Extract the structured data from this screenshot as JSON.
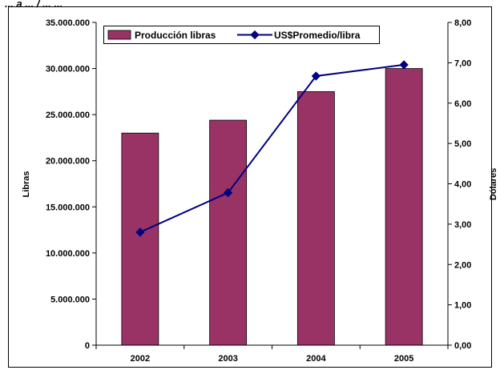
{
  "header_text": "... a ... / ... ...",
  "chart_data": {
    "type": "bar",
    "categories": [
      "2002",
      "2003",
      "2004",
      "2005"
    ],
    "series": [
      {
        "name": "Producción libras",
        "kind": "bar",
        "axis": "left",
        "values": [
          23000000,
          24400000,
          27500000,
          30000000
        ],
        "color": "#993366"
      },
      {
        "name": "US$Promedio/libra",
        "kind": "line",
        "axis": "right",
        "values": [
          2.8,
          3.78,
          6.67,
          6.95
        ],
        "color": "#000080"
      }
    ],
    "ylabel_left": "Libras",
    "ylabel_right": "Dólares",
    "ylim_left": [
      0,
      35000000
    ],
    "ylim_right": [
      0,
      8
    ],
    "yticks_left": [
      "0",
      "5.000.000",
      "10.000.000",
      "15.000.000",
      "20.000.000",
      "25.000.000",
      "30.000.000",
      "35.000.000"
    ],
    "yticks_right": [
      "0,00",
      "1,00",
      "2,00",
      "3,00",
      "4,00",
      "5,00",
      "6,00",
      "7,00",
      "8,00"
    ],
    "grid": false,
    "legend_position": "top-left"
  }
}
